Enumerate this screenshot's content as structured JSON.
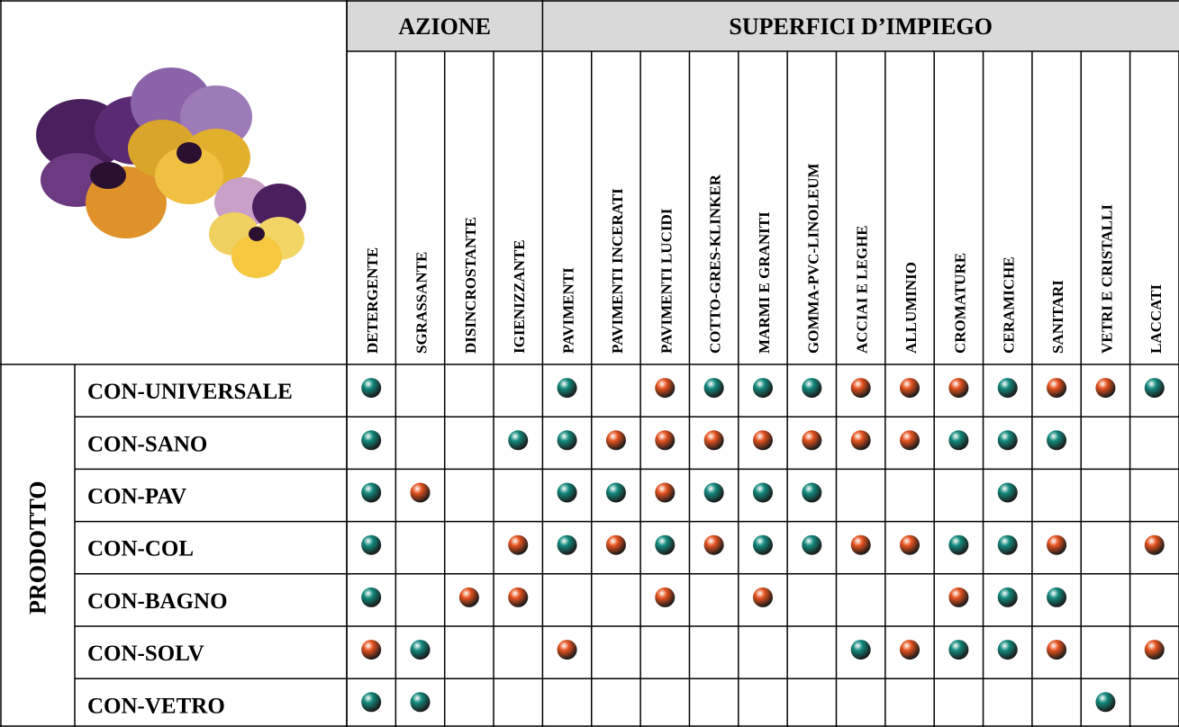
{
  "header": {
    "groups": [
      {
        "label": "AZIONE",
        "columns": [
          "DETERGENTE",
          "SGRASSANTE",
          "DISINCROSTANTE",
          "IGIENIZZANTE"
        ]
      },
      {
        "label": "SUPERFICI D’IMPIEGO",
        "columns": [
          "PAVIMENTI",
          "PAVIMENTI INCERATI",
          "PAVIMENTI LUCIDI",
          "COTTO-GRES-KLINKER",
          "MARMI E GRANITI",
          "GOMMA-PVC-LINOLEUM",
          "ACCIAI E LEGHE",
          "ALLUMINIO",
          "CROMATURE",
          "CERAMICHE",
          "SANITARI",
          "VETRI E CRISTALLI",
          "LACCATI"
        ]
      }
    ],
    "row_group": "PRODOTTO"
  },
  "colors": {
    "green": "#138a7e",
    "red": "#e5531f"
  },
  "rows": [
    {
      "product": "CON-UNIVERSALE",
      "cells": [
        "green",
        null,
        null,
        null,
        "green",
        null,
        "red",
        "green",
        "green",
        "green",
        "red",
        "red",
        "red",
        "green",
        "red",
        "red",
        "green"
      ]
    },
    {
      "product": "CON-SANO",
      "cells": [
        "green",
        null,
        null,
        "green",
        "green",
        "red",
        "red",
        "red",
        "red",
        "red",
        "red",
        "red",
        "green",
        "green",
        "green",
        null,
        null
      ]
    },
    {
      "product": "CON-PAV",
      "cells": [
        "green",
        "red",
        null,
        null,
        "green",
        "green",
        "red",
        "green",
        "green",
        "green",
        null,
        null,
        null,
        "green",
        null,
        null,
        null
      ]
    },
    {
      "product": "CON-COL",
      "cells": [
        "green",
        null,
        null,
        "red",
        "green",
        "red",
        "green",
        "red",
        "green",
        "green",
        "red",
        "red",
        "green",
        "green",
        "red",
        null,
        "red"
      ]
    },
    {
      "product": "CON-BAGNO",
      "cells": [
        "green",
        null,
        "red",
        "red",
        null,
        null,
        "red",
        null,
        "red",
        null,
        null,
        null,
        "red",
        "green",
        "green",
        null,
        null
      ]
    },
    {
      "product": "CON-SOLV",
      "cells": [
        "red",
        "green",
        null,
        null,
        "red",
        null,
        null,
        null,
        null,
        null,
        "green",
        "red",
        "green",
        "green",
        "red",
        null,
        "red"
      ]
    },
    {
      "product": "CON-VETRO",
      "cells": [
        "green",
        "green",
        null,
        null,
        null,
        null,
        null,
        null,
        null,
        null,
        null,
        null,
        null,
        null,
        null,
        "green",
        null
      ]
    }
  ]
}
